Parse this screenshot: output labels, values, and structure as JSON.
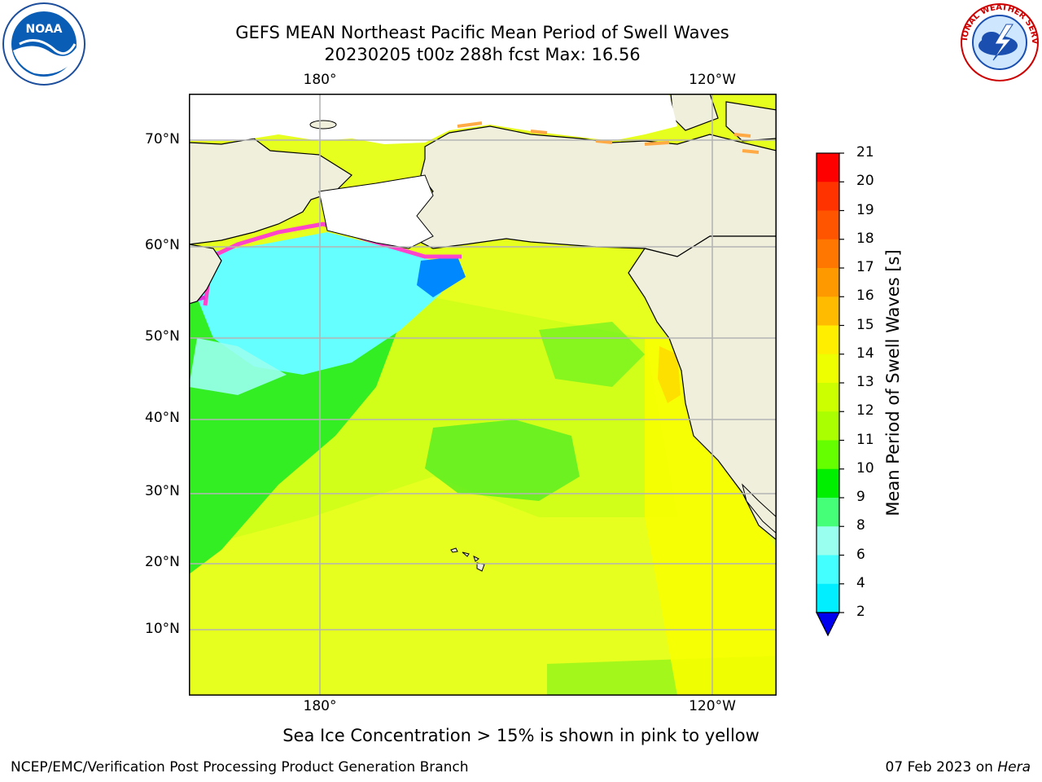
{
  "title": {
    "line1": "GEFS MEAN Northeast Pacific Mean Period of Swell Waves",
    "line2": "20230205 t00z 288h fcst   Max: 16.56"
  },
  "logos": {
    "left": {
      "icon": "noaa-logo-icon",
      "text": "NOAA"
    },
    "right": {
      "icon": "nws-logo-icon",
      "text": "NATIONAL WEATHER SERVICE"
    }
  },
  "axes": {
    "lon_top": [
      "180°",
      "120°W"
    ],
    "lon_bottom": [
      "180°",
      "120°W"
    ],
    "lat": [
      "70°N",
      "60°N",
      "50°N",
      "40°N",
      "30°N",
      "20°N",
      "10°N"
    ]
  },
  "colorbar": {
    "label": "Mean Period of Swell Waves [s]",
    "levels": [
      "21",
      "20",
      "19",
      "18",
      "17",
      "16",
      "15",
      "14",
      "13",
      "12",
      "11",
      "10",
      "9",
      "8",
      "6",
      "4",
      "2"
    ],
    "colors": [
      "#ff0000",
      "#ff3300",
      "#ff5500",
      "#ff7700",
      "#ff9900",
      "#ffbb00",
      "#ffee00",
      "#eeff00",
      "#ccff00",
      "#aaff00",
      "#66ff00",
      "#00ee00",
      "#44ff77",
      "#99ffee",
      "#44ffff",
      "#00eeff",
      "#0088ff",
      "#0000ee"
    ]
  },
  "colors": {
    "land": "#efefdc",
    "ice_white": "#ffffff",
    "ocean_yellow": "#e6ff1f",
    "ocean_green": "#33ee22",
    "ocean_cyan": "#66ffff",
    "ice_pink": "#ff44cc",
    "grid": "#b4b4b4"
  },
  "note": "Sea Ice Concentration > 15% is shown in pink to yellow",
  "footer": {
    "left": "NCEP/EMC/Verification Post Processing Product Generation Branch",
    "right_date": "07 Feb 2023 on ",
    "right_machine": "Hera"
  }
}
